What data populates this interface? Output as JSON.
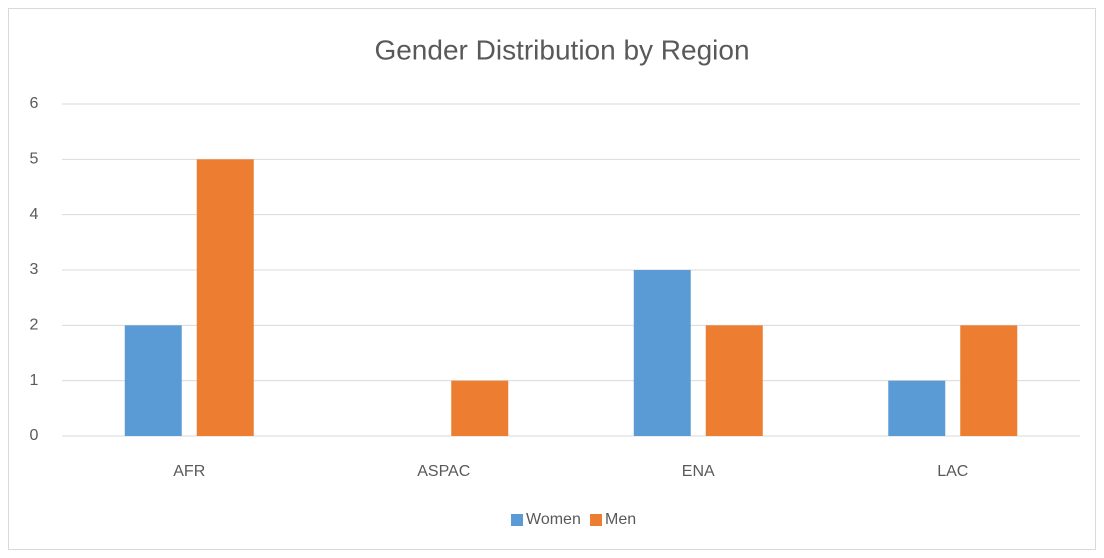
{
  "chart_data": {
    "type": "bar",
    "title": "Gender Distribution by Region",
    "categories": [
      "AFR",
      "ASPAC",
      "ENA",
      "LAC"
    ],
    "series": [
      {
        "name": "Women",
        "color": "#5b9bd5",
        "values": [
          2,
          0,
          3,
          1
        ]
      },
      {
        "name": "Men",
        "color": "#ed7d31",
        "values": [
          5,
          1,
          2,
          2
        ]
      }
    ],
    "ylim": [
      0,
      6
    ],
    "yticks": [
      0,
      1,
      2,
      3,
      4,
      5,
      6
    ],
    "grid": true,
    "legend": "bottom"
  }
}
